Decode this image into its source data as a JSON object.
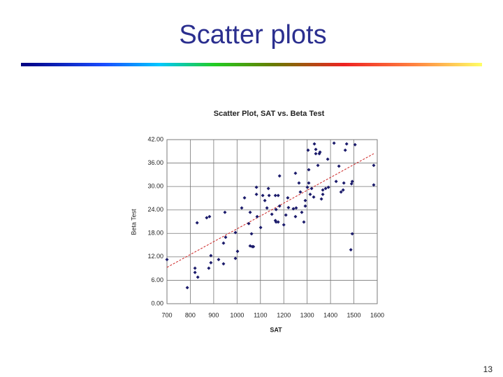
{
  "slide": {
    "title": "Scatter plots",
    "page_number": "13"
  },
  "chart_data": {
    "type": "scatter",
    "title": "Scatter Plot, SAT vs. Beta Test",
    "x_label": "SAT",
    "y_label": "Beta Test",
    "x": [
      700,
      787,
      820,
      820,
      832,
      829,
      870,
      882,
      879,
      888,
      888,
      921,
      942,
      948,
      942,
      951,
      993,
      993,
      1002,
      1020,
      1032,
      1050,
      1056,
      1062,
      1056,
      1065,
      1070,
      1083,
      1083,
      1086,
      1101,
      1110,
      1119,
      1128,
      1134,
      1137,
      1149,
      1164,
      1164,
      1167,
      1167,
      1176,
      1176,
      1182,
      1182,
      1200,
      1209,
      1217,
      1220,
      1241,
      1250,
      1250,
      1253,
      1265,
      1271,
      1277,
      1286,
      1292,
      1292,
      1301,
      1304,
      1307,
      1307,
      1313,
      1319,
      1328,
      1331,
      1337,
      1337,
      1346,
      1352,
      1355,
      1361,
      1367,
      1367,
      1379,
      1388,
      1391,
      1415,
      1424,
      1436,
      1445,
      1457,
      1463,
      1469,
      1454,
      1493,
      1493,
      1487,
      1490,
      1505,
      1585,
      1585
    ],
    "values": [
      11.3,
      4.1,
      9.1,
      8.0,
      6.8,
      20.7,
      22.0,
      22.3,
      9.1,
      10.5,
      12.3,
      11.3,
      10.2,
      23.4,
      15.5,
      17.0,
      18.2,
      11.6,
      13.4,
      24.5,
      27.1,
      20.5,
      14.8,
      17.9,
      23.4,
      14.6,
      14.6,
      29.8,
      28.0,
      22.3,
      19.5,
      27.7,
      26.4,
      24.5,
      29.5,
      27.7,
      22.9,
      27.7,
      21.3,
      24.1,
      20.9,
      27.7,
      20.9,
      32.7,
      25.0,
      20.2,
      22.7,
      27.1,
      24.6,
      24.3,
      33.4,
      22.3,
      24.5,
      30.9,
      28.6,
      23.4,
      20.9,
      25.0,
      26.4,
      29.8,
      39.3,
      34.3,
      30.9,
      28.0,
      29.5,
      27.3,
      40.9,
      39.5,
      38.4,
      35.4,
      38.4,
      38.8,
      26.8,
      28.0,
      29.1,
      29.5,
      37.0,
      29.8,
      41.1,
      31.3,
      35.2,
      28.6,
      30.9,
      39.3,
      40.9,
      29.1,
      31.3,
      17.9,
      13.8,
      30.7,
      40.7,
      35.4,
      30.4
    ],
    "color": "#1b1b6b",
    "trendline": {
      "x": [
        700,
        1585
      ],
      "values": [
        9.3,
        38.4
      ],
      "color": "#cc2222"
    },
    "xlim": [
      700,
      1600
    ],
    "xticks": [
      700,
      800,
      900,
      1000,
      1100,
      1200,
      1300,
      1400,
      1500,
      1600
    ],
    "ylim": [
      0,
      42
    ],
    "yticks": [
      {
        "value": 0,
        "label": "0.00"
      },
      {
        "value": 6,
        "label": "6.00"
      },
      {
        "value": 12,
        "label": "12.00"
      },
      {
        "value": 18,
        "label": "18.00"
      },
      {
        "value": 24,
        "label": "24.00"
      },
      {
        "value": 30,
        "label": "30.00"
      },
      {
        "value": 36,
        "label": "36.00"
      },
      {
        "value": 42,
        "label": "42.00"
      }
    ],
    "grid": true
  }
}
